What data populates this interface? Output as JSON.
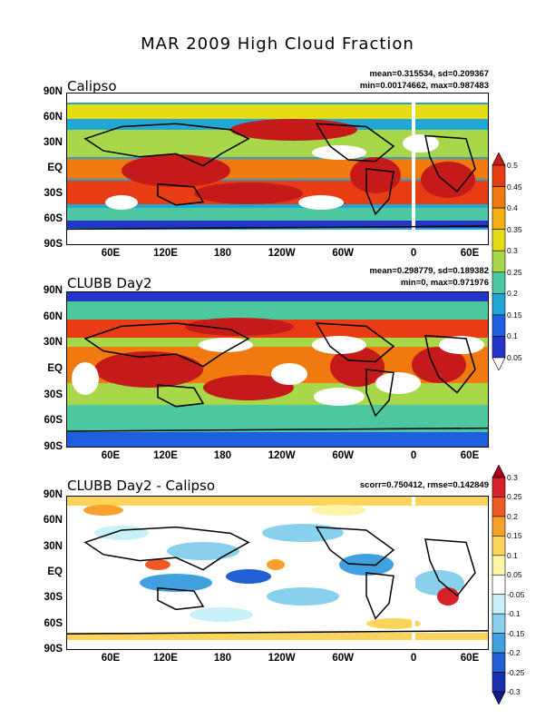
{
  "title": "MAR 2009 High Cloud Fraction",
  "lat_ticks": [
    "90N",
    "60N",
    "30N",
    "EQ",
    "30S",
    "60S",
    "90S"
  ],
  "lon_ticks": [
    "60E",
    "120E",
    "180",
    "120W",
    "60W",
    "0",
    "60E"
  ],
  "panels": [
    {
      "label": "Calipso",
      "stat_line1": "mean=0.315534, sd=0.209367",
      "stat_line2": "min=0.00174662, max=0.987483"
    },
    {
      "label": "CLUBB Day2",
      "stat_line1": "mean=0.298779, sd=0.189382",
      "stat_line2": "min=0, max=0.971976"
    },
    {
      "label": "CLUBB Day2 - Calipso",
      "stat_line1": "scorr=0.750412, rmse=0.142849",
      "stat_line2": ""
    }
  ],
  "colorbar_abs": {
    "labels": [
      "0.5",
      "0.45",
      "0.4",
      "0.35",
      "0.3",
      "0.25",
      "0.2",
      "0.15",
      "0.1",
      "0.05"
    ],
    "colors": [
      "#c41a1a",
      "#e83c14",
      "#f07a10",
      "#f5b014",
      "#e6dc14",
      "#a8d84a",
      "#4cc8a0",
      "#22a6d6",
      "#1e5fe0",
      "#2436c8",
      "#ffffff"
    ]
  },
  "colorbar_diff": {
    "labels": [
      "0.3",
      "0.25",
      "0.2",
      "0.15",
      "0.1",
      "0.05",
      "-0.05",
      "-0.1",
      "-0.15",
      "-0.2",
      "-0.25",
      "-0.3"
    ],
    "colors": [
      "#a4001c",
      "#d8202a",
      "#f05a24",
      "#f8a02c",
      "#fcd45a",
      "#fff3a8",
      "#ffffff",
      "#c8f0f8",
      "#88d0ec",
      "#40a0e0",
      "#2060d0",
      "#1830b0",
      "#101c88"
    ]
  }
}
